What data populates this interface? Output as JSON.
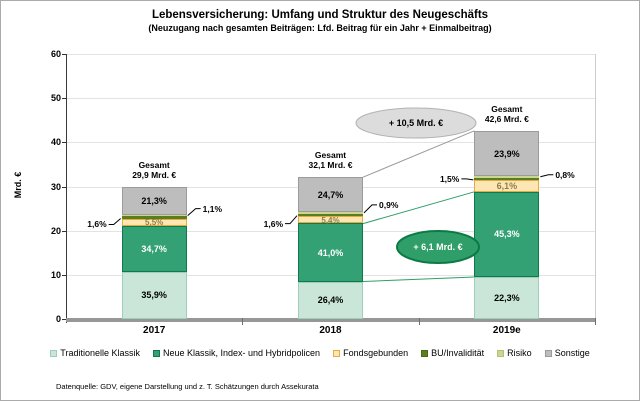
{
  "header": {
    "title": "Lebensversicherung: Umfang und Struktur des Neugeschäfts",
    "subtitle": "(Neuzugang nach gesamten Beiträgen: Lfd. Beitrag für ein Jahr + Einmalbeitrag)"
  },
  "footer": {
    "source": "Datenquelle: GDV, eigene Darstellung und z. T. Schätzungen durch Assekurata"
  },
  "chart_data": {
    "type": "bar",
    "stacked": true,
    "title": "Lebensversicherung: Umfang und Struktur des Neugeschäfts",
    "subtitle": "(Neuzugang nach gesamten Beiträgen: Lfd. Beitrag für ein Jahr + Einmalbeitrag)",
    "ylabel": "Mrd. €",
    "ylim": [
      0,
      60
    ],
    "ytick_step": 10,
    "ytick_labels": [
      "0",
      "10",
      "20",
      "30",
      "40",
      "50",
      "60"
    ],
    "grid": true,
    "legend_position": "bottom",
    "categories": [
      "2017",
      "2018",
      "2019e"
    ],
    "totals": [
      29.9,
      32.1,
      42.6
    ],
    "total_caption": "Gesamt",
    "total_value_labels": [
      "29,9 Mrd. €",
      "32,1 Mrd. €",
      "42,6 Mrd. €"
    ],
    "series": [
      {
        "name": "Traditionelle Klassik",
        "color": "#c9e6d8",
        "border_color": "#9fcdb9",
        "label_mode": "inside",
        "label_color": "#000000",
        "values_pct": [
          35.9,
          26.4,
          22.3
        ],
        "value_labels": [
          "35,9%",
          "26,4%",
          "22,3%"
        ]
      },
      {
        "name": "Neue Klassik, Index- und Hybridpolicen",
        "color": "#33a173",
        "border_color": "#0d7a4b",
        "label_mode": "inside",
        "label_color": "#ffffff",
        "values_pct": [
          34.7,
          41.0,
          45.3
        ],
        "value_labels": [
          "34,7%",
          "41,0%",
          "45,3%"
        ]
      },
      {
        "name": "Fondsgebunden",
        "color": "#fce6b4",
        "border_color": "#eaa93e",
        "label_mode": "inside",
        "label_color": "#8d7f4d",
        "values_pct": [
          5.5,
          5.4,
          6.1
        ],
        "value_labels": [
          "5,5%",
          "5,4%",
          "6,1%"
        ]
      },
      {
        "name": "BU/Invalidität",
        "color": "#5a7d1f",
        "border_color": "#4c6a16",
        "label_mode": "leader-left",
        "label_color": "#000000",
        "values_pct": [
          1.6,
          1.6,
          1.5
        ],
        "value_labels": [
          "1,6%",
          "1,6%",
          "1,5%"
        ]
      },
      {
        "name": "Risiko",
        "color": "#ccd693",
        "border_color": "#b5c172",
        "label_mode": "leader-right",
        "label_color": "#000000",
        "values_pct": [
          1.1,
          0.9,
          0.8
        ],
        "value_labels": [
          "1,1%",
          "0,9%",
          "0,8%"
        ]
      },
      {
        "name": "Sonstige",
        "color": "#bdbdbd",
        "border_color": "#9b9b9b",
        "label_mode": "inside",
        "label_color": "#000000",
        "values_pct": [
          21.3,
          24.7,
          23.9
        ],
        "value_labels": [
          "21,3%",
          "24,7%",
          "23,9%"
        ]
      }
    ],
    "annotations": {
      "ovals": [
        {
          "text": "+ 10,5 Mrd. €",
          "fill": "#dcdcdc",
          "stroke": "#b3b3b3",
          "text_color": "#000000"
        },
        {
          "text": "+ 6,1 Mrd. €",
          "fill": "#2f9e68",
          "stroke": "#0c7a45",
          "text_color": "#ffffff"
        }
      ],
      "connectors": [
        {
          "from_category": "2018",
          "to_category": "2019e",
          "from_value": 32.1,
          "to_value": 42.6,
          "color": "#9a9a9a"
        },
        {
          "from_category": "2018",
          "to_category": "2019e",
          "from_value": 21.6,
          "to_value": 28.8,
          "color": "#2f9e68"
        },
        {
          "from_category": "2018",
          "to_category": "2019e",
          "from_value": 8.5,
          "to_value": 9.5,
          "color": "#2f9e68"
        }
      ]
    }
  }
}
